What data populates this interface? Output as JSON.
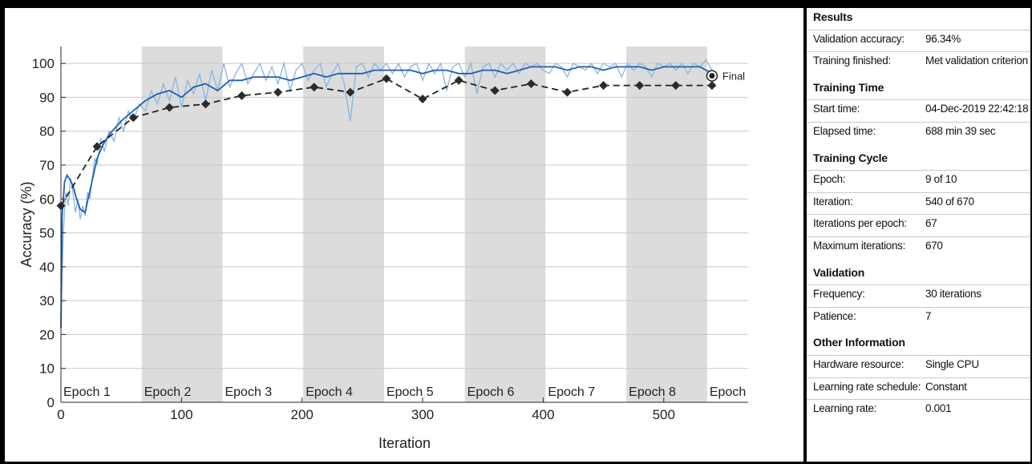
{
  "chart_data": {
    "type": "line",
    "xlabel": "Iteration",
    "ylabel": "Accuracy (%)",
    "xlim": [
      0,
      570
    ],
    "ylim": [
      0,
      105
    ],
    "xticks": [
      0,
      100,
      200,
      300,
      400,
      500
    ],
    "yticks": [
      0,
      10,
      20,
      30,
      40,
      50,
      60,
      70,
      80,
      90,
      100
    ],
    "epoch_bands": [
      {
        "label": "Epoch 1",
        "start": 0,
        "end": 67,
        "shaded": false
      },
      {
        "label": "Epoch 2",
        "start": 67,
        "end": 134,
        "shaded": true
      },
      {
        "label": "Epoch 3",
        "start": 134,
        "end": 201,
        "shaded": false
      },
      {
        "label": "Epoch 4",
        "start": 201,
        "end": 268,
        "shaded": true
      },
      {
        "label": "Epoch 5",
        "start": 268,
        "end": 335,
        "shaded": false
      },
      {
        "label": "Epoch 6",
        "start": 335,
        "end": 402,
        "shaded": true
      },
      {
        "label": "Epoch 7",
        "start": 402,
        "end": 469,
        "shaded": false
      },
      {
        "label": "Epoch 8",
        "start": 469,
        "end": 536,
        "shaded": true
      },
      {
        "label": "Epoch",
        "start": 536,
        "end": 570,
        "shaded": false
      }
    ],
    "series": [
      {
        "role": "training_smoothed",
        "color": "#1f5fb4",
        "x": [
          0,
          1,
          3,
          5,
          7,
          10,
          13,
          16,
          20,
          25,
          30,
          35,
          40,
          50,
          60,
          70,
          80,
          90,
          100,
          110,
          120,
          130,
          140,
          150,
          160,
          170,
          180,
          190,
          200,
          210,
          220,
          230,
          240,
          250,
          260,
          270,
          280,
          290,
          300,
          310,
          320,
          330,
          340,
          350,
          360,
          370,
          380,
          390,
          400,
          410,
          420,
          430,
          440,
          450,
          460,
          470,
          480,
          490,
          500,
          510,
          520,
          530,
          540
        ],
        "y": [
          22,
          55,
          65,
          67,
          66,
          64,
          60,
          57,
          56,
          64,
          72,
          76,
          79,
          83,
          86,
          89,
          91,
          92,
          90,
          93,
          94,
          92,
          95,
          95,
          96,
          96,
          96,
          95,
          96,
          97,
          96,
          97,
          97,
          97,
          98,
          98,
          98,
          98,
          97,
          98,
          98,
          97,
          97,
          98,
          98,
          97,
          98,
          99,
          99,
          99,
          98,
          99,
          99,
          98,
          99,
          99,
          99,
          98,
          99,
          99,
          99,
          99,
          97
        ]
      },
      {
        "role": "training_raw",
        "color": "#8ab4e0",
        "x": [
          0,
          2,
          4,
          6,
          8,
          10,
          12,
          14,
          16,
          18,
          20,
          22,
          24,
          26,
          28,
          30,
          33,
          36,
          40,
          44,
          48,
          52,
          56,
          60,
          65,
          70,
          75,
          80,
          85,
          90,
          95,
          100,
          105,
          110,
          115,
          120,
          125,
          130,
          135,
          140,
          145,
          150,
          155,
          160,
          165,
          170,
          175,
          180,
          185,
          190,
          195,
          200,
          205,
          210,
          215,
          220,
          225,
          230,
          235,
          240,
          245,
          250,
          255,
          260,
          265,
          270,
          275,
          280,
          285,
          290,
          295,
          300,
          305,
          310,
          315,
          320,
          325,
          330,
          335,
          340,
          345,
          350,
          355,
          360,
          365,
          370,
          375,
          380,
          385,
          390,
          395,
          400,
          405,
          410,
          415,
          420,
          425,
          430,
          435,
          440,
          445,
          450,
          455,
          460,
          465,
          470,
          475,
          480,
          485,
          490,
          495,
          500,
          505,
          510,
          515,
          520,
          525,
          530,
          535,
          540
        ],
        "y": [
          25,
          50,
          62,
          58,
          66,
          62,
          56,
          60,
          54,
          58,
          55,
          62,
          60,
          66,
          72,
          70,
          78,
          74,
          80,
          77,
          84,
          80,
          86,
          83,
          88,
          86,
          92,
          88,
          94,
          89,
          96,
          87,
          95,
          91,
          97,
          89,
          98,
          92,
          100,
          93,
          97,
          100,
          94,
          97,
          100,
          95,
          99,
          94,
          100,
          92,
          98,
          100,
          95,
          98,
          100,
          93,
          97,
          100,
          94,
          83,
          99,
          100,
          96,
          100,
          98,
          100,
          97,
          100,
          96,
          99,
          100,
          95,
          100,
          97,
          100,
          92,
          99,
          100,
          96,
          100,
          91,
          99,
          100,
          96,
          100,
          98,
          100,
          97,
          100,
          99,
          100,
          98,
          97,
          100,
          99,
          96,
          100,
          99,
          98,
          100,
          97,
          100,
          99,
          100,
          96,
          100,
          98,
          100,
          99,
          96,
          100,
          99,
          100,
          98,
          100,
          97,
          100,
          99,
          101,
          98
        ]
      },
      {
        "role": "validation",
        "color": "#222222",
        "x": [
          0,
          30,
          60,
          90,
          120,
          150,
          180,
          210,
          240,
          270,
          300,
          330,
          360,
          390,
          420,
          450,
          480,
          510,
          540
        ],
        "y": [
          58,
          75.5,
          84,
          87,
          88,
          90.5,
          91.5,
          93,
          91.5,
          95.5,
          89.5,
          95,
          92,
          94,
          91.5,
          93.5,
          93.5,
          93.5,
          93.5
        ]
      }
    ],
    "final_point": {
      "x": 540,
      "y": 96.34
    },
    "annotations": [
      "Final"
    ]
  },
  "info": {
    "sections": [
      {
        "title": "Results",
        "rows": [
          {
            "label": "Validation accuracy:",
            "value": "96.34%"
          },
          {
            "label": "Training finished:",
            "value": "Met validation criterion"
          }
        ]
      },
      {
        "title": "Training Time",
        "rows": [
          {
            "label": "Start time:",
            "value": "04-Dec-2019 22:42:18"
          },
          {
            "label": "Elapsed time:",
            "value": "688 min 39 sec"
          }
        ]
      },
      {
        "title": "Training Cycle",
        "rows": [
          {
            "label": "Epoch:",
            "value": "9 of 10"
          },
          {
            "label": "Iteration:",
            "value": "540 of 670"
          },
          {
            "label": "Iterations per epoch:",
            "value": "67"
          },
          {
            "label": "Maximum iterations:",
            "value": "670"
          }
        ]
      },
      {
        "title": "Validation",
        "rows": [
          {
            "label": "Frequency:",
            "value": "30 iterations"
          },
          {
            "label": "Patience:",
            "value": "7"
          }
        ]
      },
      {
        "title": "Other Information",
        "rows": [
          {
            "label": "Hardware resource:",
            "value": "Single CPU"
          },
          {
            "label": "Learning rate schedule:",
            "value": "Constant"
          },
          {
            "label": "Learning rate:",
            "value": "0.001"
          }
        ]
      }
    ]
  }
}
